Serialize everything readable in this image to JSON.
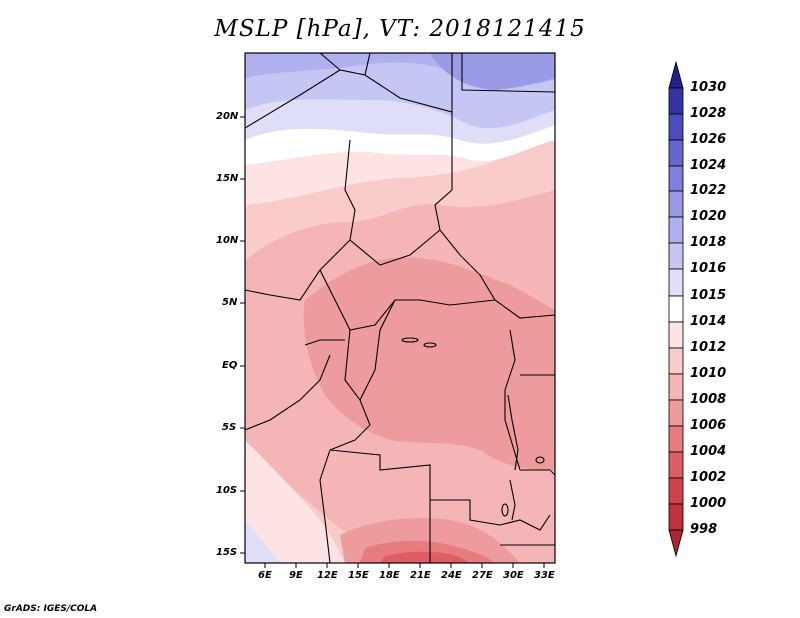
{
  "title": "MSLP [hPa], VT: 2018121415",
  "credit": "GrADS: IGES/COLA",
  "map": {
    "variable": "Mean sea level pressure",
    "lon_range": [
      3,
      34
    ],
    "lat_range": [
      -16,
      25
    ],
    "lat_ticks": [
      "20N",
      "15N",
      "10N",
      "5N",
      "EQ",
      "5S",
      "10S",
      "15S"
    ],
    "lon_ticks": [
      "6E",
      "9E",
      "12E",
      "15E",
      "18E",
      "21E",
      "24E",
      "27E",
      "30E",
      "33E"
    ]
  },
  "colorbar": {
    "levels": [
      "998",
      "1000",
      "1002",
      "1004",
      "1006",
      "1008",
      "1010",
      "1012",
      "1014",
      "1015",
      "1016",
      "1018",
      "1020",
      "1022",
      "1024",
      "1026",
      "1028",
      "1030"
    ],
    "colors": [
      "#b0242b",
      "#c0323a",
      "#d2414a",
      "#de5e64",
      "#e67c80",
      "#ee9b9d",
      "#f5b5b6",
      "#f9cbcb",
      "#fde3e3",
      "#ffffff",
      "#dedef8",
      "#c6c6f4",
      "#b0b0ee",
      "#9a9ae6",
      "#8080dc",
      "#6666d0",
      "#4c4cc0",
      "#3434a8",
      "#20208f"
    ]
  }
}
